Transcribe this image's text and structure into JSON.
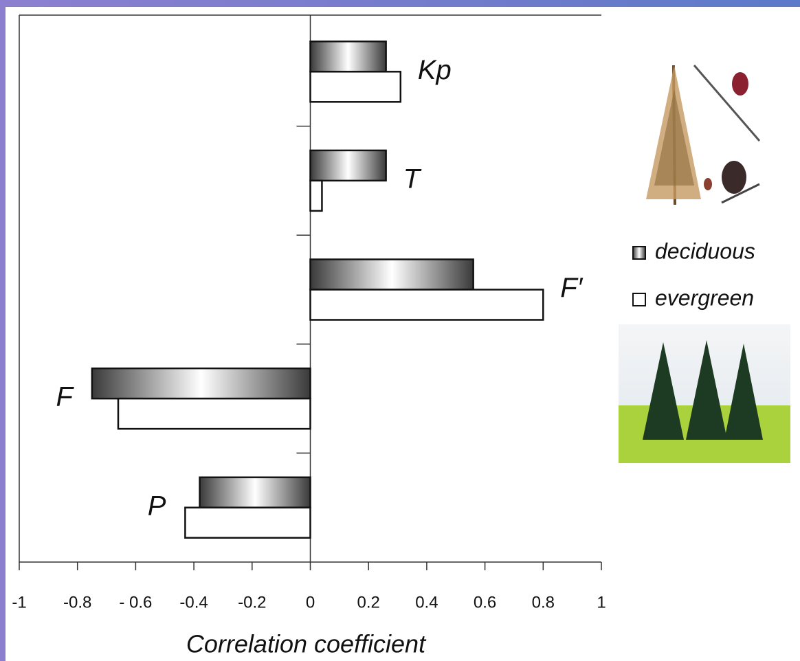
{
  "chart_data": {
    "type": "barh",
    "xlabel": "Correlation coefficient",
    "categories": [
      "Kp",
      "T",
      "F′",
      "F",
      "P"
    ],
    "series": [
      {
        "name": "deciduous",
        "color": "#3a3a3a",
        "values": [
          0.26,
          0.26,
          0.56,
          -0.75,
          -0.38
        ]
      },
      {
        "name": "evergreen",
        "color": "#ffffff",
        "values": [
          0.31,
          0.04,
          0.8,
          -0.66,
          -0.43
        ]
      }
    ],
    "xlim": [
      -1,
      1
    ],
    "xticks": [
      -1,
      -0.8,
      {
        "value": -0.6,
        "label": "- 0.6"
      },
      -0.4,
      -0.2,
      0,
      0.2,
      0.4,
      0.6,
      0.8,
      1
    ]
  }
}
